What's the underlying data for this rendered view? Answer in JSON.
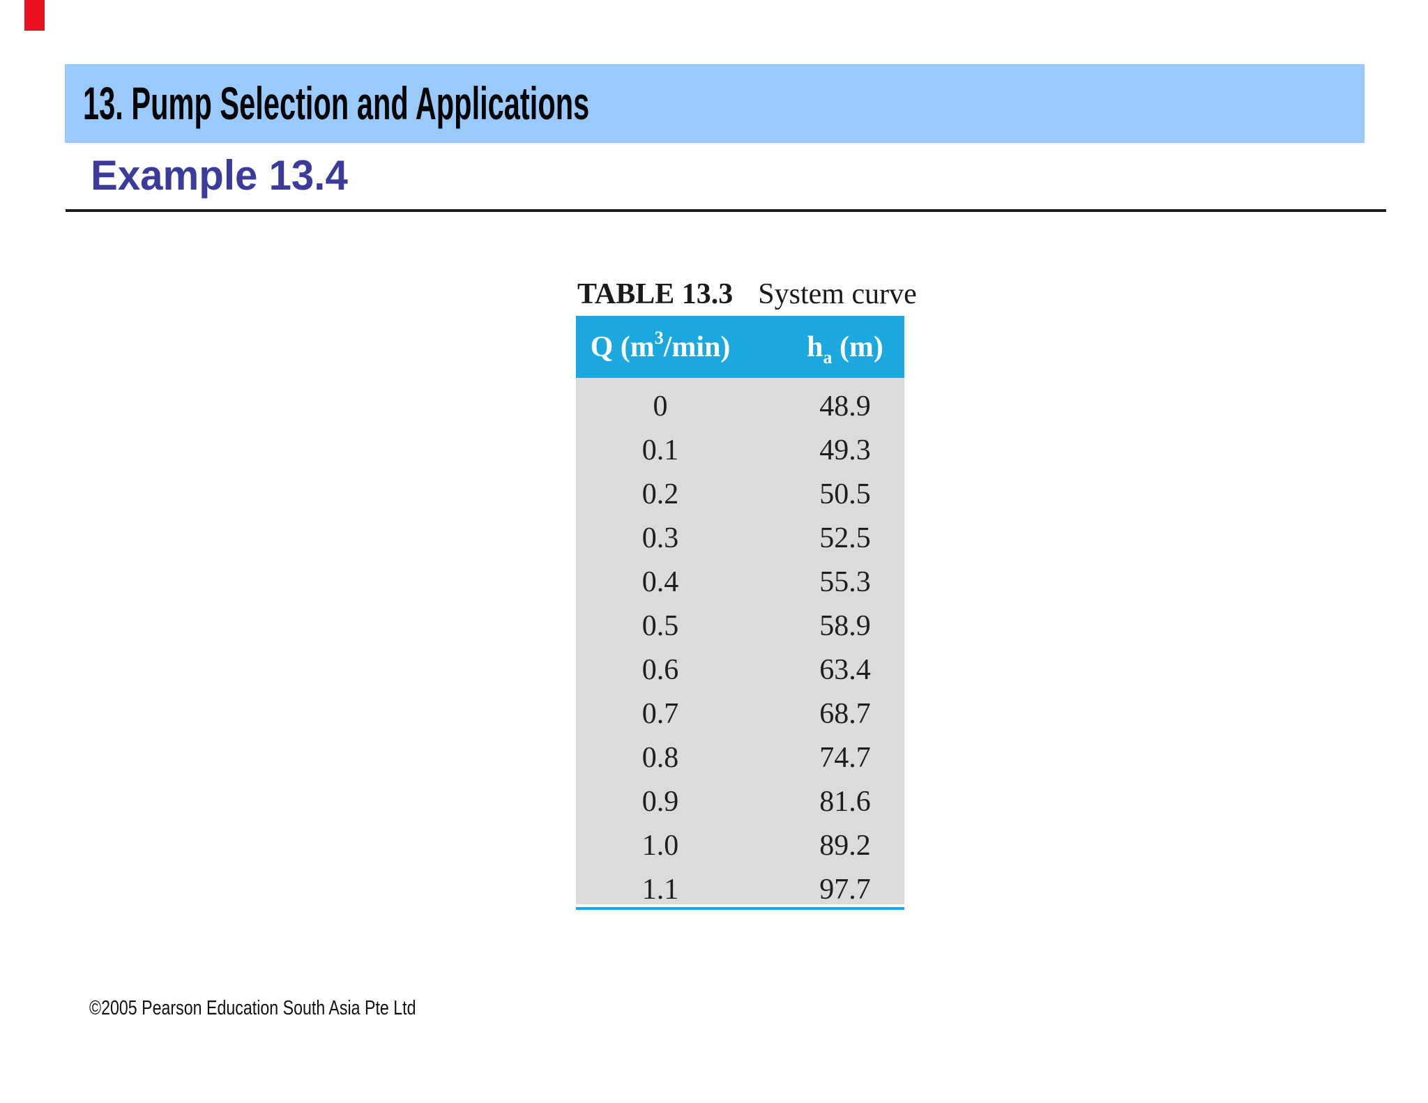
{
  "slide": {
    "title_bar": {
      "text": "13. Pump Selection and Applications",
      "bg_color": "#9acafb"
    },
    "example_heading": "Example 13.4",
    "example_heading_color": "#3b3b9e",
    "accent_red_color": "#e8121e",
    "footer": "©2005 Pearson Education South Asia Pte Ltd"
  },
  "table": {
    "label": "TABLE 13.3",
    "caption": "System curve",
    "header_bg": "#1aa8de",
    "body_bg": "#dbdbdb",
    "header": {
      "q_pre": "Q (m",
      "q_sup": "3",
      "q_post": "/min)",
      "ha_pre": "h",
      "ha_sub": "a",
      "ha_post": " (m)"
    },
    "rows": [
      {
        "q": "0",
        "ha": "48.9"
      },
      {
        "q": "0.1",
        "ha": "49.3"
      },
      {
        "q": "0.2",
        "ha": "50.5"
      },
      {
        "q": "0.3",
        "ha": "52.5"
      },
      {
        "q": "0.4",
        "ha": "55.3"
      },
      {
        "q": "0.5",
        "ha": "58.9"
      },
      {
        "q": "0.6",
        "ha": "63.4"
      },
      {
        "q": "0.7",
        "ha": "68.7"
      },
      {
        "q": "0.8",
        "ha": "74.7"
      },
      {
        "q": "0.9",
        "ha": "81.6"
      },
      {
        "q": "1.0",
        "ha": "89.2"
      },
      {
        "q": "1.1",
        "ha": "97.7"
      }
    ]
  },
  "chart_data": {
    "type": "table",
    "title": "TABLE 13.3 System curve",
    "columns": [
      "Q (m3/min)",
      "ha (m)"
    ],
    "q_m3_per_min": [
      0,
      0.1,
      0.2,
      0.3,
      0.4,
      0.5,
      0.6,
      0.7,
      0.8,
      0.9,
      1.0,
      1.1
    ],
    "ha_m": [
      48.9,
      49.3,
      50.5,
      52.5,
      55.3,
      58.9,
      63.4,
      68.7,
      74.7,
      81.6,
      89.2,
      97.7
    ]
  }
}
